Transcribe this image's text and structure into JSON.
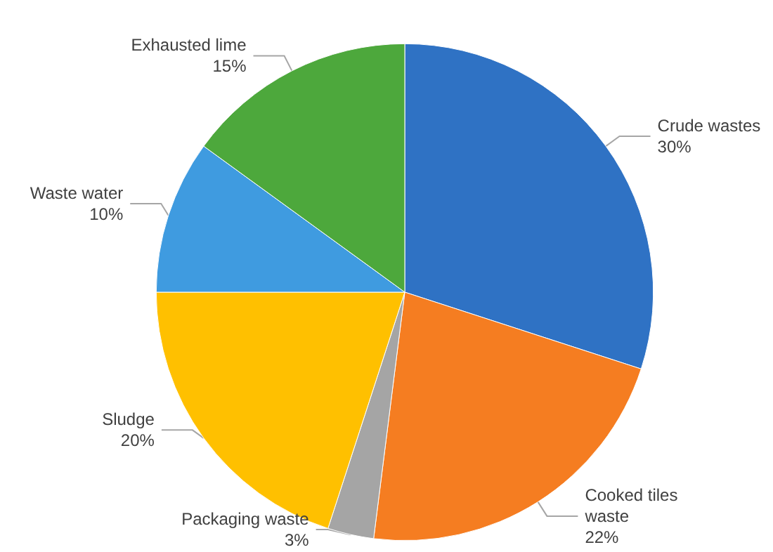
{
  "chart_data": {
    "type": "pie",
    "categories": [
      "Crude wastes",
      "Cooked tiles waste",
      "Packaging waste",
      "Sludge",
      "Waste water",
      "Exhausted lime"
    ],
    "values": [
      30,
      22,
      3,
      20,
      10,
      15
    ],
    "colors": [
      "#2f72c4",
      "#f57d21",
      "#a5a5a5",
      "#ffc000",
      "#3f9be0",
      "#4da83c"
    ],
    "value_labels": [
      "30%",
      "22%",
      "3%",
      "20%",
      "10%",
      "15%"
    ],
    "legend": false
  }
}
